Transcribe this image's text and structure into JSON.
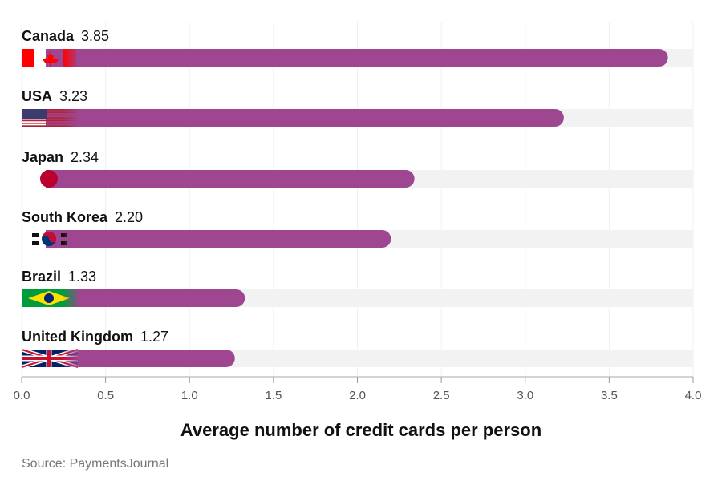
{
  "chart_data": {
    "type": "bar",
    "orientation": "horizontal",
    "categories": [
      "Canada",
      "USA",
      "Japan",
      "South Korea",
      "Brazil",
      "United Kingdom"
    ],
    "values": [
      3.85,
      3.23,
      2.34,
      2.2,
      1.33,
      1.27
    ],
    "value_labels": [
      "3.85",
      "3.23",
      "2.34",
      "2.20",
      "1.33",
      "1.27"
    ],
    "flags": [
      "canada-flag",
      "usa-flag",
      "japan-flag",
      "south-korea-flag",
      "brazil-flag",
      "uk-flag"
    ],
    "xlabel": "Average number of credit cards per person",
    "ylabel": "",
    "xlim": [
      0,
      4
    ],
    "xticks": [
      "0.0",
      "0.5",
      "1.0",
      "1.5",
      "2.0",
      "2.5",
      "3.0",
      "3.5",
      "4.0"
    ],
    "grid": "vertical",
    "bar_color": "#9e4690",
    "track_color": "#f2f2f2"
  },
  "source": "Source: PaymentsJournal"
}
